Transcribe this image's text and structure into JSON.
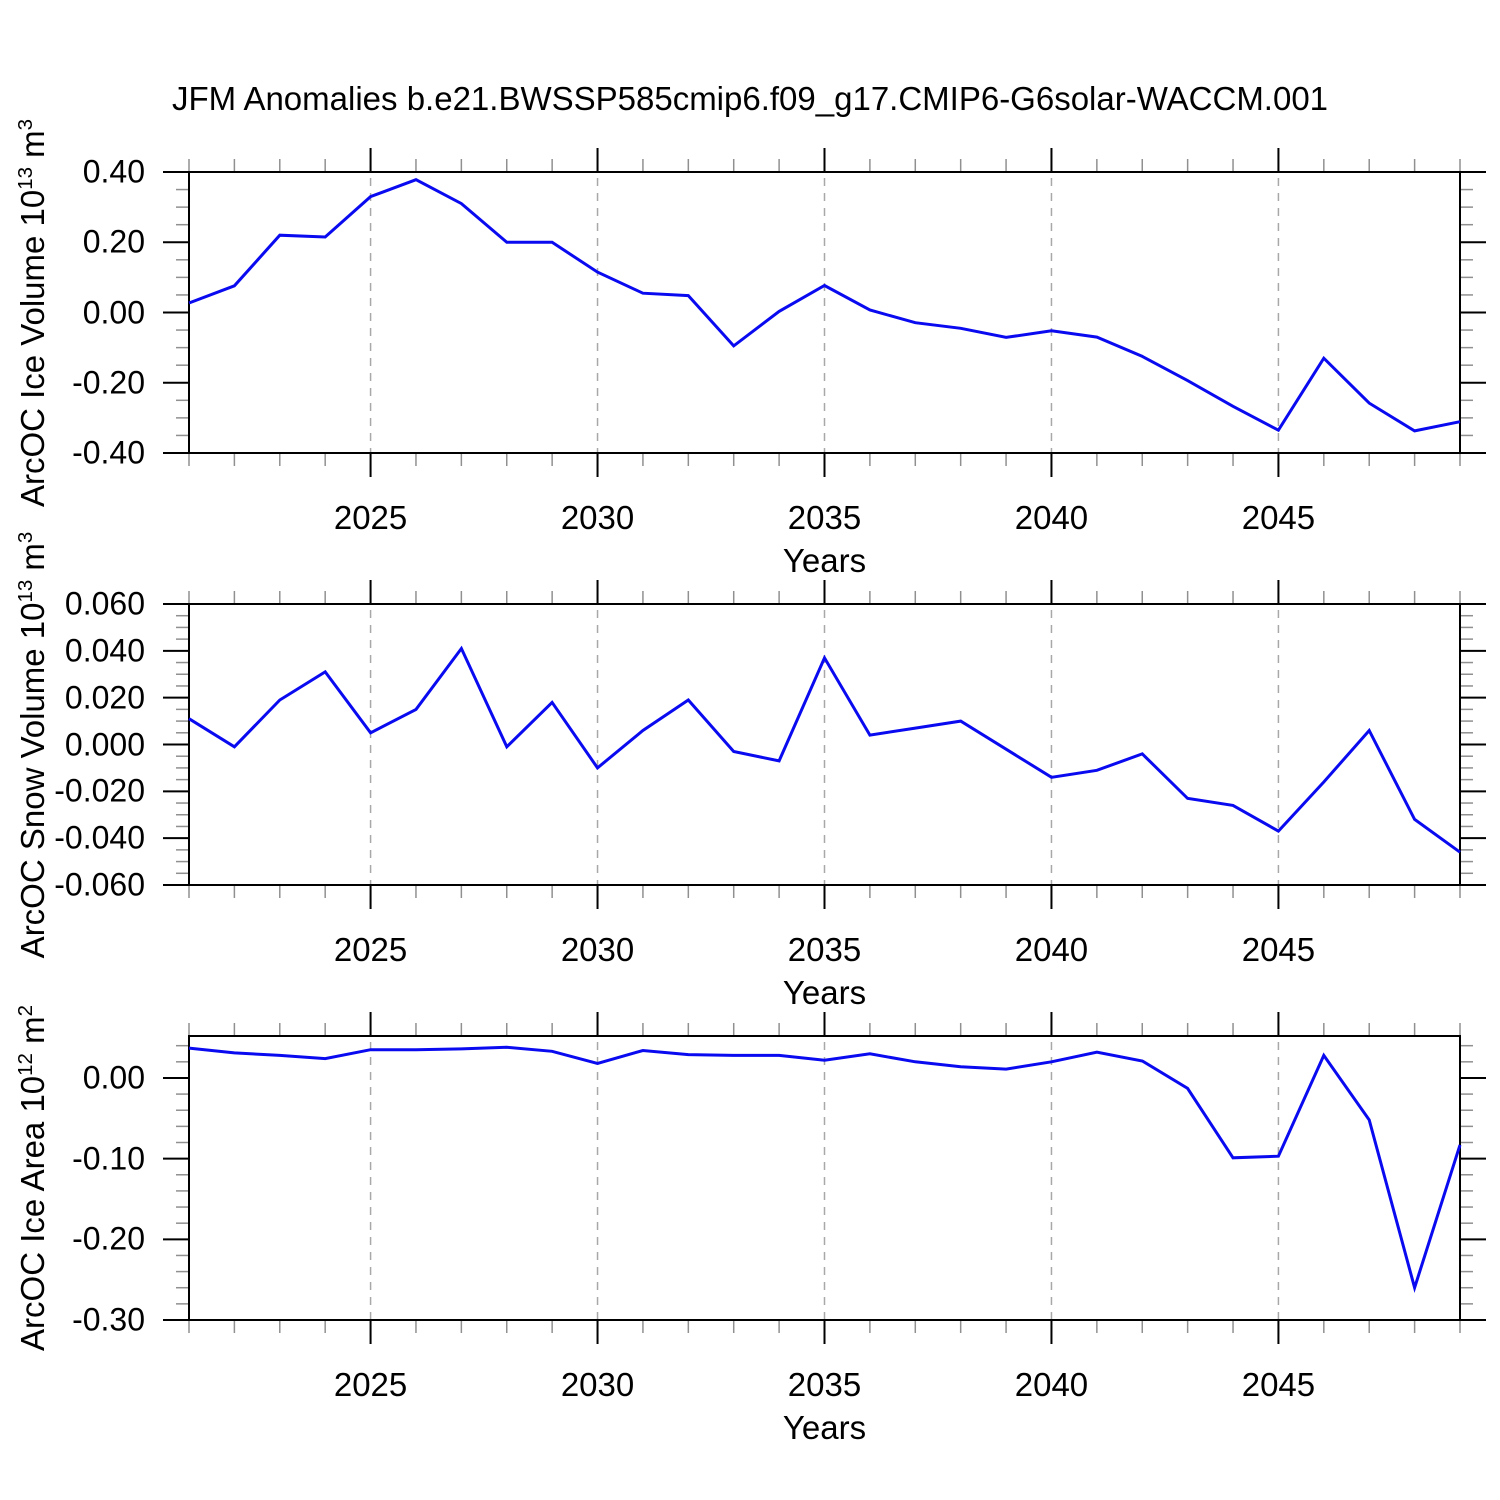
{
  "title": "JFM Anomalies b.e21.BWSSP585cmip6.f09_g17.CMIP6-G6solar-WACCM.001",
  "line_color": "#0a0af0",
  "chart_data": [
    {
      "type": "line",
      "name": "ice-volume",
      "ylabel": {
        "base": "ArcOC Ice Volume 10",
        "exp": "13",
        "unit": " m",
        "unit_exp": "3"
      },
      "xlabel": "Years",
      "x": [
        2021,
        2022,
        2023,
        2024,
        2025,
        2026,
        2027,
        2028,
        2029,
        2030,
        2031,
        2032,
        2033,
        2034,
        2035,
        2036,
        2037,
        2038,
        2039,
        2040,
        2041,
        2042,
        2043,
        2044,
        2045,
        2046,
        2047,
        2048,
        2049
      ],
      "values": [
        0.027,
        0.076,
        0.22,
        0.215,
        0.33,
        0.378,
        0.31,
        0.2,
        0.2,
        0.115,
        0.055,
        0.048,
        -0.095,
        0.003,
        0.077,
        0.007,
        -0.029,
        -0.045,
        -0.071,
        -0.052,
        -0.07,
        -0.125,
        -0.194,
        -0.267,
        -0.335,
        -0.13,
        -0.258,
        -0.337,
        -0.311
      ],
      "ylim": [
        -0.4,
        0.4
      ],
      "ytick_major": [
        0.4,
        0.2,
        0.0,
        -0.2,
        -0.4
      ],
      "ytick_labels": [
        "0.40",
        "0.20",
        "0.00",
        "-0.20",
        "-0.40"
      ],
      "ytick_minor_step": 0.05,
      "xtick_major": [
        2025,
        2030,
        2035,
        2040,
        2045
      ],
      "xtick_labels": [
        "2025",
        "2030",
        "2035",
        "2040",
        "2045"
      ],
      "grid": "vertical-dashed",
      "xlim": [
        2021,
        2049
      ]
    },
    {
      "type": "line",
      "name": "snow-volume",
      "ylabel": {
        "base": "ArcOC Snow Volume 10",
        "exp": "13",
        "unit": " m",
        "unit_exp": "3"
      },
      "xlabel": "Years",
      "x": [
        2021,
        2022,
        2023,
        2024,
        2025,
        2026,
        2027,
        2028,
        2029,
        2030,
        2031,
        2032,
        2033,
        2034,
        2035,
        2036,
        2037,
        2038,
        2039,
        2040,
        2041,
        2042,
        2043,
        2044,
        2045,
        2046,
        2047,
        2048,
        2049
      ],
      "values": [
        0.011,
        -0.001,
        0.019,
        0.031,
        0.005,
        0.015,
        0.041,
        -0.001,
        0.018,
        -0.01,
        0.006,
        0.019,
        -0.003,
        -0.007,
        0.037,
        0.004,
        0.007,
        0.01,
        -0.002,
        -0.014,
        -0.011,
        -0.004,
        -0.023,
        -0.026,
        -0.037,
        -0.016,
        0.006,
        -0.032,
        -0.046
      ],
      "ylim": [
        -0.06,
        0.06
      ],
      "ytick_major": [
        0.06,
        0.04,
        0.02,
        0.0,
        -0.02,
        -0.04,
        -0.06
      ],
      "ytick_labels": [
        "0.060",
        "0.040",
        "0.020",
        "0.000",
        "-0.020",
        "-0.040",
        "-0.060"
      ],
      "ytick_minor_step": 0.005,
      "xtick_major": [
        2025,
        2030,
        2035,
        2040,
        2045
      ],
      "xtick_labels": [
        "2025",
        "2030",
        "2035",
        "2040",
        "2045"
      ],
      "grid": "vertical-dashed",
      "xlim": [
        2021,
        2049
      ]
    },
    {
      "type": "line",
      "name": "ice-area",
      "ylabel": {
        "base": "ArcOC Ice Area 10",
        "exp": "12",
        "unit": " m",
        "unit_exp": "2"
      },
      "xlabel": "Years",
      "x": [
        2021,
        2022,
        2023,
        2024,
        2025,
        2026,
        2027,
        2028,
        2029,
        2030,
        2031,
        2032,
        2033,
        2034,
        2035,
        2036,
        2037,
        2038,
        2039,
        2040,
        2041,
        2042,
        2043,
        2044,
        2045,
        2046,
        2047,
        2048,
        2049
      ],
      "values": [
        0.037,
        0.031,
        0.028,
        0.024,
        0.035,
        0.035,
        0.036,
        0.038,
        0.033,
        0.018,
        0.034,
        0.029,
        0.028,
        0.028,
        0.022,
        0.03,
        0.02,
        0.014,
        0.011,
        0.02,
        0.032,
        0.021,
        -0.013,
        -0.099,
        -0.097,
        0.028,
        -0.052,
        -0.26,
        -0.083
      ],
      "ylim": [
        -0.3,
        0.052
      ],
      "ytick_major": [
        0.0,
        -0.1,
        -0.2,
        -0.3
      ],
      "ytick_labels": [
        "0.00",
        "-0.10",
        "-0.20",
        "-0.30"
      ],
      "ytick_minor_step": 0.02,
      "xtick_major": [
        2025,
        2030,
        2035,
        2040,
        2045
      ],
      "xtick_labels": [
        "2025",
        "2030",
        "2035",
        "2040",
        "2045"
      ],
      "grid": "vertical-dashed",
      "xlim": [
        2021,
        2049
      ]
    }
  ]
}
